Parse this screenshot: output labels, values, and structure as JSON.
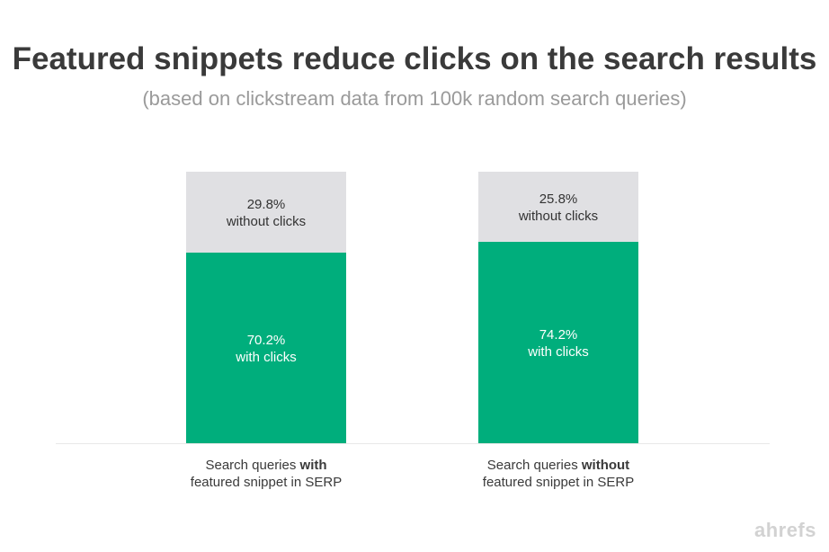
{
  "chart_data": {
    "type": "bar",
    "stacked": true,
    "percent_stacked": true,
    "title": "Featured snippets reduce clicks on the search results",
    "subtitle": "(based on clickstream data from 100k random search queries)",
    "categories": [
      {
        "line1_normal": "Search queries ",
        "line1_bold": "with",
        "line2": "featured snippet in SERP"
      },
      {
        "line1_normal": "Search queries ",
        "line1_bold": "without",
        "line2": "featured snippet in SERP"
      }
    ],
    "series": [
      {
        "name": "with clicks",
        "color": "#00ae7c",
        "text_color": "#ffffff",
        "values": [
          70.2,
          74.2
        ],
        "labels": [
          "70.2%",
          "74.2%"
        ]
      },
      {
        "name": "without clicks",
        "color": "#e0e0e3",
        "text_color": "#333333",
        "values": [
          29.8,
          25.8
        ],
        "labels": [
          "29.8%",
          "25.8%"
        ]
      }
    ],
    "ylim": [
      0,
      100
    ],
    "grid": false,
    "legend": "none"
  },
  "brand": "ahrefs"
}
